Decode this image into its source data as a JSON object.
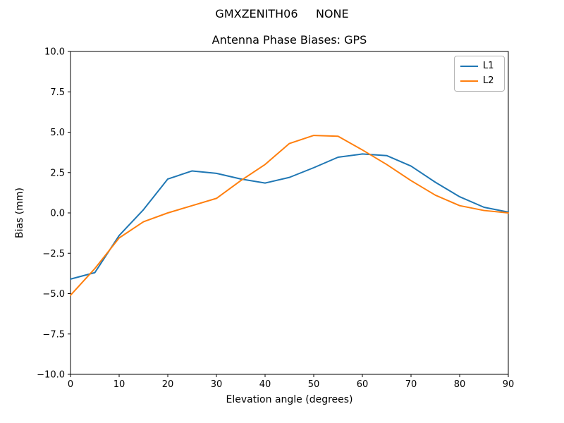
{
  "figure": {
    "suptitle": "GMXZENITH06     NONE",
    "background_color": "#ffffff"
  },
  "chart_data": {
    "type": "line",
    "title": "Antenna Phase Biases: GPS",
    "xlabel": "Elevation angle (degrees)",
    "ylabel": "Bias (mm)",
    "xlim": [
      0,
      90
    ],
    "ylim": [
      -10.0,
      10.0
    ],
    "grid": false,
    "legend_position": "upper right",
    "axis_color": "#000000",
    "x": [
      0,
      5,
      10,
      15,
      20,
      25,
      30,
      35,
      40,
      45,
      50,
      55,
      60,
      65,
      70,
      75,
      80,
      85,
      90
    ],
    "series": [
      {
        "name": "L1",
        "color": "#1f77b4",
        "values": [
          -4.1,
          -3.7,
          -1.4,
          0.2,
          2.1,
          2.6,
          2.45,
          2.1,
          1.85,
          2.2,
          2.8,
          3.45,
          3.65,
          3.55,
          2.9,
          1.9,
          1.0,
          0.35,
          0.05
        ]
      },
      {
        "name": "L2",
        "color": "#ff7f0e",
        "values": [
          -5.1,
          -3.45,
          -1.55,
          -0.55,
          0.0,
          0.45,
          0.9,
          2.0,
          3.0,
          4.3,
          4.8,
          4.75,
          3.9,
          3.0,
          2.0,
          1.1,
          0.45,
          0.15,
          0.0
        ]
      }
    ],
    "xticks": {
      "values": [
        0,
        10,
        20,
        30,
        40,
        50,
        60,
        70,
        80,
        90
      ],
      "labels": [
        "0",
        "10",
        "20",
        "30",
        "40",
        "50",
        "60",
        "70",
        "80",
        "90"
      ]
    },
    "yticks": {
      "values": [
        -10.0,
        -7.5,
        -5.0,
        -2.5,
        0.0,
        2.5,
        5.0,
        7.5,
        10.0
      ],
      "labels": [
        "−10.0",
        "−7.5",
        "−5.0",
        "−2.5",
        "0.0",
        "2.5",
        "5.0",
        "7.5",
        "10.0"
      ]
    }
  }
}
